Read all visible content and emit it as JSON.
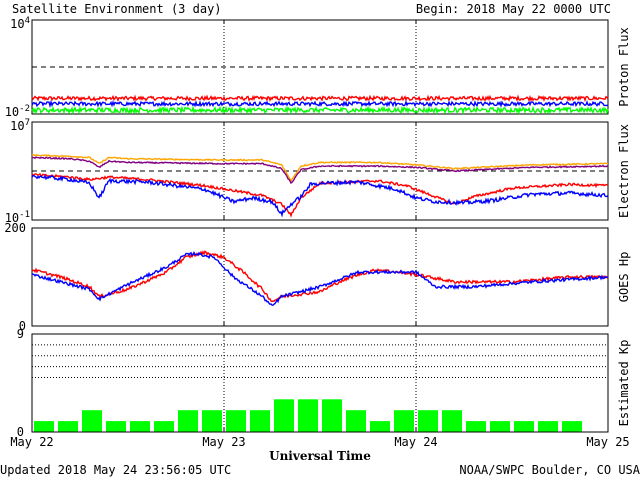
{
  "header": {
    "title": "Satellite Environment (3 day)",
    "begin": "Begin:  2018 May 22 0000 UTC"
  },
  "footer": {
    "updated": "Updated 2018 May 24 23:56:05 UTC",
    "credit": "NOAA/SWPC Boulder, CO USA"
  },
  "colors": {
    "red": "#ff0000",
    "blue": "#0000ff",
    "green": "#00ff00",
    "orange": "#ffa500",
    "purple": "#800080",
    "bar": "#00ff00"
  },
  "chart_data": [
    {
      "type": "line",
      "id": "proton",
      "ylabel": "Proton Flux",
      "scale": "log",
      "ylim_exp": [
        -2,
        4
      ],
      "ytick_labels": {
        "top": {
          "base": "10",
          "exp": "4"
        },
        "bottom": {
          "base": "10",
          "exp": "-2"
        }
      },
      "threshold_exp": 1,
      "xlim_days": [
        0,
        3
      ],
      "series": [
        {
          "color": "#ff0000",
          "x": [
            0,
            3
          ],
          "y_exp": [
            -1.0,
            -1.0
          ],
          "noise": 0.12
        },
        {
          "color": "#0000ff",
          "x": [
            0,
            3
          ],
          "y_exp": [
            -1.35,
            -1.35
          ],
          "noise": 0.12
        },
        {
          "color": "#00ff00",
          "x": [
            0,
            3
          ],
          "y_exp": [
            -1.75,
            -1.75
          ],
          "noise": 0.15
        }
      ]
    },
    {
      "type": "line",
      "id": "electron",
      "ylabel": "Electron Flux",
      "scale": "log",
      "ylim_exp": [
        -1,
        7
      ],
      "ytick_labels": {
        "top": {
          "base": "10",
          "exp": "7"
        },
        "bottom": {
          "base": "10",
          "exp": "-1"
        }
      },
      "threshold_exp": 3,
      "xlim_days": [
        0,
        3
      ],
      "series": [
        {
          "color": "#ffa500",
          "x": [
            0,
            0.2,
            0.3,
            0.35,
            0.4,
            0.5,
            1.0,
            1.2,
            1.3,
            1.35,
            1.4,
            1.5,
            1.8,
            2.0,
            2.2,
            2.6,
            3.0
          ],
          "y_exp": [
            4.3,
            4.2,
            4.1,
            3.6,
            4.1,
            4.0,
            3.9,
            3.9,
            3.5,
            2.2,
            3.4,
            3.7,
            3.7,
            3.5,
            3.2,
            3.5,
            3.6
          ],
          "noise": 0.05
        },
        {
          "color": "#800080",
          "x": [
            0,
            0.2,
            0.3,
            0.35,
            0.4,
            0.5,
            1.0,
            1.2,
            1.3,
            1.35,
            1.4,
            1.5,
            1.8,
            2.0,
            2.2,
            2.6,
            3.0
          ],
          "y_exp": [
            4.1,
            4.0,
            3.8,
            3.3,
            3.8,
            3.7,
            3.6,
            3.6,
            3.2,
            2.0,
            3.1,
            3.4,
            3.4,
            3.3,
            3.0,
            3.3,
            3.4
          ],
          "noise": 0.05
        },
        {
          "color": "#ff0000",
          "x": [
            0,
            0.2,
            0.3,
            0.4,
            0.6,
            0.9,
            1.05,
            1.2,
            1.3,
            1.35,
            1.4,
            1.5,
            1.8,
            1.95,
            2.1,
            2.2,
            2.3,
            2.5,
            2.8,
            3.0
          ],
          "y_exp": [
            2.7,
            2.5,
            2.3,
            2.5,
            2.3,
            1.8,
            1.4,
            1.0,
            0.3,
            -0.6,
            0.8,
            2.0,
            2.2,
            1.8,
            0.9,
            0.3,
            0.9,
            1.6,
            1.9,
            1.8
          ],
          "noise": 0.1
        },
        {
          "color": "#0000ff",
          "x": [
            0,
            0.2,
            0.3,
            0.35,
            0.4,
            0.6,
            0.9,
            1.05,
            1.15,
            1.25,
            1.3,
            1.35,
            1.4,
            1.45,
            1.5,
            1.7,
            1.9,
            2.0,
            2.1,
            2.25,
            2.4,
            2.6,
            2.8,
            3.0
          ],
          "y_exp": [
            2.6,
            2.3,
            2.0,
            0.8,
            2.2,
            2.1,
            1.5,
            0.5,
            0.8,
            0.5,
            -0.5,
            0.3,
            0.9,
            1.9,
            2.0,
            2.1,
            1.5,
            0.8,
            0.5,
            0.4,
            0.6,
            1.1,
            1.2,
            1.0
          ],
          "noise": 0.15
        }
      ]
    },
    {
      "type": "line",
      "id": "goes-hp",
      "ylabel": "GOES Hp",
      "scale": "linear",
      "ylim": [
        0,
        200
      ],
      "yticks": [
        0,
        200
      ],
      "xlim_days": [
        0,
        3
      ],
      "series": [
        {
          "color": "#ff0000",
          "x": [
            0,
            0.15,
            0.3,
            0.35,
            0.5,
            0.7,
            0.8,
            0.9,
            1.0,
            1.1,
            1.2,
            1.25,
            1.3,
            1.5,
            1.6,
            1.7,
            1.8,
            2.0,
            2.2,
            2.5,
            2.8,
            3.0
          ],
          "y": [
            115,
            100,
            80,
            60,
            75,
            110,
            140,
            150,
            140,
            110,
            75,
            50,
            60,
            70,
            90,
            105,
            115,
            105,
            90,
            90,
            100,
            100
          ],
          "noise": 3
        },
        {
          "color": "#0000ff",
          "x": [
            0,
            0.15,
            0.3,
            0.35,
            0.5,
            0.7,
            0.8,
            0.85,
            0.95,
            1.05,
            1.2,
            1.25,
            1.3,
            1.5,
            1.6,
            1.7,
            1.8,
            2.0,
            2.1,
            2.3,
            2.6,
            2.8,
            3.0
          ],
          "y": [
            105,
            90,
            75,
            55,
            85,
            120,
            145,
            148,
            140,
            100,
            60,
            40,
            60,
            80,
            95,
            110,
            110,
            110,
            80,
            80,
            90,
            95,
            100
          ],
          "noise": 3
        }
      ]
    },
    {
      "type": "bar",
      "id": "kp",
      "ylabel": "Estimated Kp",
      "ylim": [
        0,
        9
      ],
      "yticks": [
        0,
        9
      ],
      "grid_y": [
        5,
        6,
        7,
        8,
        9
      ],
      "xlim_days": [
        0,
        3
      ],
      "interval_hours": 3,
      "values": [
        1,
        1,
        2,
        1,
        1,
        1,
        2,
        2,
        2,
        2,
        3,
        3,
        3,
        2,
        1,
        2,
        2,
        2,
        1,
        1,
        1,
        1,
        1,
        0
      ]
    }
  ],
  "x_axis": {
    "label": "Universal Time",
    "ticks": [
      "May 22",
      "May 23",
      "May 24",
      "May 25"
    ],
    "tick_days": [
      0,
      1,
      2,
      3
    ]
  }
}
